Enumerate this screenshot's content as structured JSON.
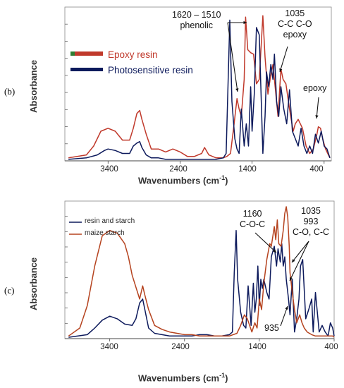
{
  "chart_data": [
    {
      "panel": "(b)",
      "type": "line",
      "xlabel": "Wavenumbers (cm-1)",
      "ylabel": "Absorbance",
      "xlim": [
        4000,
        300
      ],
      "xticks": [
        3400,
        2400,
        1400,
        400
      ],
      "legend_placement": "top-left",
      "series": [
        {
          "name": "Epoxy resin",
          "color": "#c0392b",
          "x": [
            3950,
            3700,
            3600,
            3500,
            3400,
            3300,
            3200,
            3100,
            3050,
            3000,
            2960,
            2930,
            2870,
            2800,
            2700,
            2600,
            2500,
            2400,
            2300,
            2200,
            2100,
            2060,
            2000,
            1900,
            1800,
            1750,
            1700,
            1650,
            1610,
            1580,
            1550,
            1510,
            1490,
            1460,
            1420,
            1380,
            1340,
            1300,
            1250,
            1220,
            1180,
            1150,
            1110,
            1080,
            1040,
            1000,
            970,
            930,
            880,
            830,
            800,
            760,
            700,
            650,
            600,
            550,
            500,
            480,
            450,
            420,
            380,
            350,
            320
          ],
          "y": [
            0.02,
            0.04,
            0.1,
            0.2,
            0.22,
            0.2,
            0.14,
            0.14,
            0.22,
            0.32,
            0.34,
            0.28,
            0.18,
            0.08,
            0.08,
            0.06,
            0.08,
            0.06,
            0.03,
            0.03,
            0.05,
            0.09,
            0.04,
            0.02,
            0.02,
            0.03,
            0.05,
            0.25,
            0.42,
            0.35,
            0.3,
            0.55,
            0.97,
            0.75,
            0.73,
            0.72,
            0.52,
            0.55,
            0.98,
            0.7,
            0.45,
            0.55,
            0.65,
            0.5,
            0.3,
            0.62,
            0.55,
            0.52,
            0.35,
            0.2,
            0.25,
            0.28,
            0.22,
            0.1,
            0.05,
            0.08,
            0.18,
            0.23,
            0.22,
            0.15,
            0.08,
            0.05,
            0.02
          ]
        },
        {
          "name": "Photosensitive resin",
          "color": "#0d1a5c",
          "x": [
            3950,
            3700,
            3550,
            3450,
            3400,
            3300,
            3200,
            3100,
            3050,
            3000,
            2960,
            2930,
            2870,
            2800,
            2700,
            2600,
            2500,
            2400,
            2300,
            2200,
            2100,
            2000,
            1900,
            1800,
            1760,
            1735,
            1710,
            1680,
            1640,
            1610,
            1580,
            1550,
            1510,
            1480,
            1450,
            1420,
            1400,
            1370,
            1340,
            1300,
            1250,
            1220,
            1200,
            1170,
            1140,
            1110,
            1090,
            1060,
            1030,
            1000,
            960,
            920,
            880,
            840,
            800,
            760,
            720,
            680,
            640,
            600,
            560,
            520,
            480,
            440,
            400,
            360,
            320
          ],
          "y": [
            0.01,
            0.02,
            0.04,
            0.07,
            0.08,
            0.07,
            0.05,
            0.05,
            0.1,
            0.12,
            0.13,
            0.09,
            0.04,
            0.02,
            0.02,
            0.01,
            0.01,
            0.01,
            0.01,
            0.01,
            0.01,
            0.01,
            0.01,
            0.02,
            0.05,
            0.5,
            0.95,
            0.4,
            0.15,
            0.08,
            0.05,
            0.35,
            0.1,
            0.25,
            0.1,
            0.5,
            0.2,
            0.45,
            0.9,
            0.85,
            0.05,
            0.3,
            0.6,
            0.5,
            0.65,
            0.55,
            0.72,
            0.4,
            0.3,
            0.5,
            0.35,
            0.25,
            0.48,
            0.2,
            0.15,
            0.1,
            0.22,
            0.1,
            0.05,
            0.1,
            0.05,
            0.18,
            0.12,
            0.2,
            0.1,
            0.08,
            0.02
          ]
        }
      ],
      "annotations": [
        {
          "text": "1620 – 1510",
          "text2": "phenolic"
        },
        {
          "text": "1035",
          "text2": "C-C C-O",
          "text3": "epoxy"
        },
        {
          "text": "epoxy"
        }
      ]
    },
    {
      "panel": "(c)",
      "type": "line",
      "xlabel": "Wavenumbers (cm-1)",
      "ylabel": "Absorbance",
      "xlim": [
        4000,
        400
      ],
      "xticks": [
        3400,
        2400,
        1400,
        400
      ],
      "legend_placement": "top-left",
      "series": [
        {
          "name": "resin and starch",
          "color": "#0d1a5c",
          "x": [
            3950,
            3700,
            3600,
            3500,
            3400,
            3300,
            3200,
            3100,
            3050,
            3000,
            2960,
            2930,
            2880,
            2800,
            2700,
            2600,
            2500,
            2400,
            2300,
            2200,
            2100,
            2000,
            1900,
            1800,
            1760,
            1735,
            1710,
            1690,
            1650,
            1610,
            1580,
            1550,
            1510,
            1480,
            1460,
            1440,
            1420,
            1400,
            1380,
            1360,
            1340,
            1300,
            1270,
            1240,
            1200,
            1170,
            1150,
            1120,
            1100,
            1080,
            1060,
            1040,
            1010,
            990,
            960,
            930,
            900,
            870,
            850,
            820,
            780,
            740,
            700,
            680,
            650,
            600,
            560,
            520,
            480,
            450,
            420,
            400
          ],
          "y": [
            0.01,
            0.03,
            0.08,
            0.14,
            0.17,
            0.15,
            0.11,
            0.1,
            0.15,
            0.27,
            0.3,
            0.22,
            0.08,
            0.04,
            0.03,
            0.02,
            0.02,
            0.02,
            0.02,
            0.03,
            0.03,
            0.02,
            0.02,
            0.03,
            0.05,
            0.5,
            0.82,
            0.45,
            0.2,
            0.1,
            0.08,
            0.4,
            0.1,
            0.42,
            0.2,
            0.3,
            0.55,
            0.25,
            0.45,
            0.38,
            0.45,
            0.35,
            0.3,
            0.62,
            0.7,
            0.55,
            0.68,
            0.58,
            0.72,
            0.55,
            0.62,
            0.45,
            0.3,
            0.18,
            0.45,
            0.05,
            0.15,
            0.3,
            0.55,
            0.6,
            0.15,
            0.22,
            0.3,
            0.05,
            0.35,
            0.05,
            0.1,
            0.05,
            0.02,
            0.12,
            0.08,
            0.02
          ]
        },
        {
          "name": "maize starch",
          "color": "#b5431f",
          "x": [
            3950,
            3800,
            3700,
            3600,
            3500,
            3400,
            3300,
            3200,
            3150,
            3100,
            3000,
            2960,
            2930,
            2880,
            2800,
            2700,
            2600,
            2500,
            2400,
            2300,
            2200,
            2100,
            2000,
            1900,
            1800,
            1700,
            1650,
            1600,
            1560,
            1500,
            1460,
            1430,
            1400,
            1370,
            1340,
            1300,
            1260,
            1240,
            1200,
            1180,
            1160,
            1140,
            1110,
            1080,
            1060,
            1040,
            1020,
            1000,
            990,
            960,
            930,
            900,
            860,
            830,
            800,
            760,
            700,
            650,
            600,
            560,
            520,
            480,
            450,
            420,
            400
          ],
          "y": [
            0.02,
            0.08,
            0.25,
            0.55,
            0.78,
            0.82,
            0.8,
            0.72,
            0.62,
            0.48,
            0.3,
            0.4,
            0.33,
            0.22,
            0.1,
            0.07,
            0.05,
            0.04,
            0.03,
            0.03,
            0.02,
            0.02,
            0.02,
            0.02,
            0.02,
            0.04,
            0.1,
            0.18,
            0.15,
            0.05,
            0.12,
            0.08,
            0.3,
            0.22,
            0.42,
            0.6,
            0.72,
            0.7,
            0.85,
            0.75,
            0.9,
            0.72,
            0.7,
            0.82,
            0.95,
            1.0,
            0.92,
            0.7,
            0.5,
            0.35,
            0.22,
            0.12,
            0.18,
            0.12,
            0.08,
            0.05,
            0.03,
            0.02,
            0.02,
            0.02,
            0.02,
            0.02,
            0.02,
            0.02,
            0.01
          ]
        }
      ],
      "annotations": [
        {
          "text": "1160",
          "text2": "C-O-C"
        },
        {
          "text": "1035",
          "text2": "993",
          "text3": "C-O, C-C"
        },
        {
          "text": "935"
        }
      ]
    }
  ]
}
